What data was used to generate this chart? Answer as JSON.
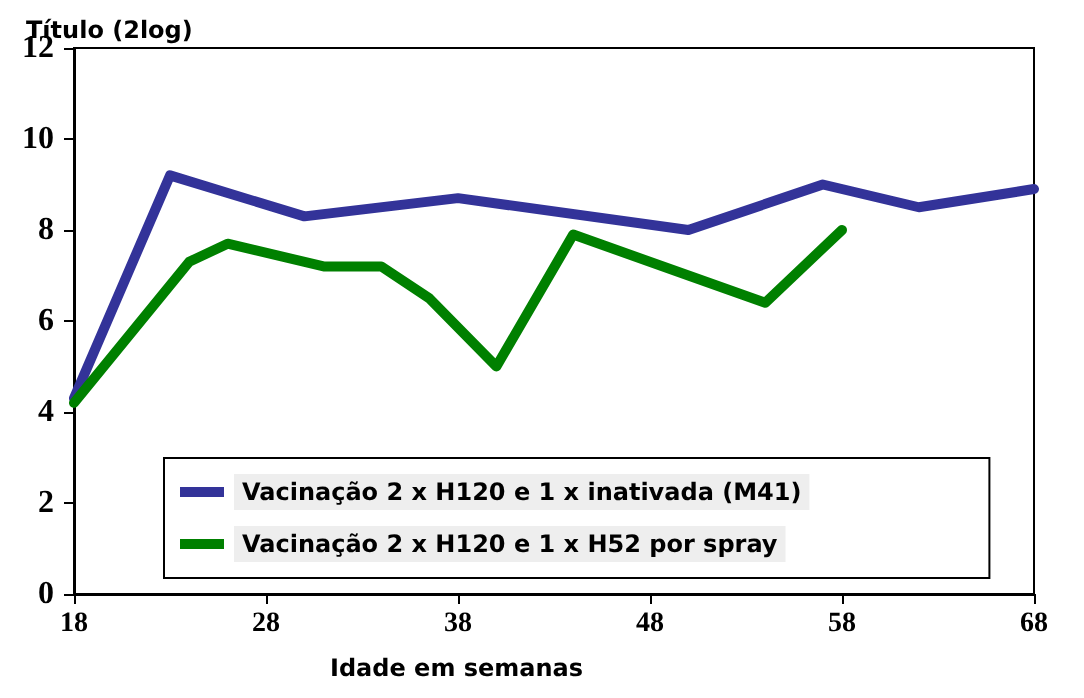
{
  "chart_data": {
    "type": "line",
    "ylabel": "Título (2log)",
    "xlabel": "Idade em semanas",
    "xlim": [
      18,
      68
    ],
    "xticks": [
      18,
      28,
      38,
      48,
      58,
      68
    ],
    "ylim": [
      0,
      12
    ],
    "yticks": [
      0,
      2,
      4,
      6,
      8,
      10,
      12
    ],
    "grid": false,
    "legend": "bottom",
    "marker": "none",
    "line_style": "solid",
    "series": [
      {
        "name": "Vacinação 2 x H120 e 1 x inativada (M41)",
        "color": "#333399",
        "x": [
          18,
          23,
          30,
          38,
          50,
          57,
          62,
          68
        ],
        "values": [
          4.3,
          9.2,
          8.3,
          8.7,
          8.0,
          9.0,
          8.5,
          8.9
        ]
      },
      {
        "name": "Vacinação 2 x H120 e 1 x H52 por spray",
        "color": "#008000",
        "x": [
          18,
          24,
          26,
          31,
          34,
          36.5,
          40,
          44,
          50,
          54,
          58
        ],
        "values": [
          4.2,
          7.3,
          7.7,
          7.2,
          7.2,
          6.5,
          5.0,
          7.9,
          7.0,
          6.4,
          8.0
        ]
      }
    ]
  }
}
